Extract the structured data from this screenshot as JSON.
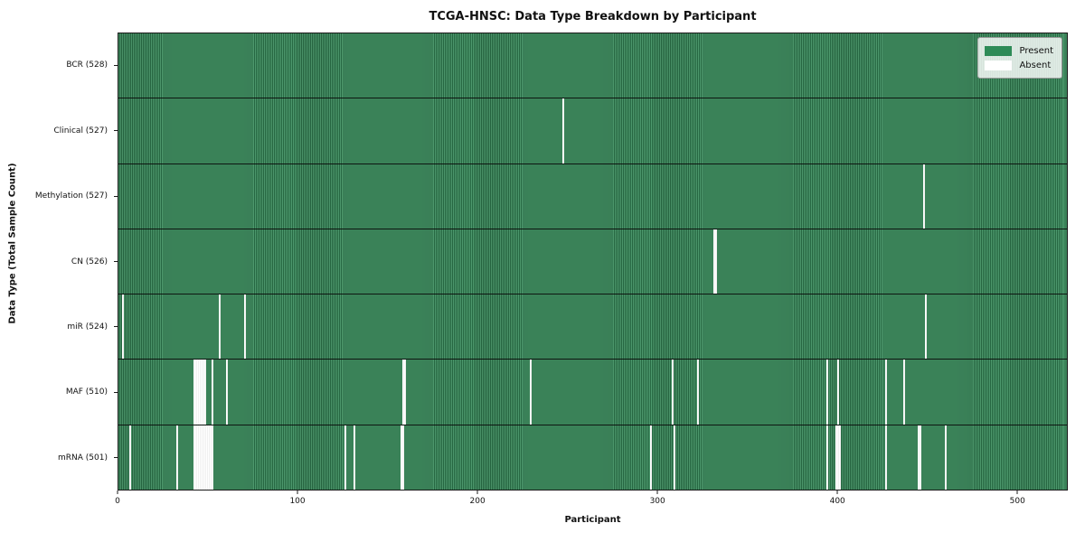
{
  "title": "TCGA-HNSC: Data Type Breakdown by Participant",
  "colors": {
    "present": "#2e8b57",
    "present_stripe_light": "#4e9a6e",
    "present_stripe_dark": "#276943",
    "present_mid": "#2e7a50",
    "absent": "#ffffff",
    "axis": "#1b1b1b"
  },
  "legend": {
    "present_label": "Present",
    "absent_label": "Absent"
  },
  "chart_data": {
    "type": "heatmap",
    "title": "TCGA-HNSC: Data Type Breakdown by Participant",
    "xlabel": "Participant",
    "ylabel": "Data Type (Total Sample Count)",
    "legend_entries": [
      "Present",
      "Absent"
    ],
    "legend_position": "upper right",
    "grid": false,
    "n_participants": 528,
    "x_range": [
      0,
      528
    ],
    "x_ticks": [
      0,
      100,
      200,
      300,
      400,
      500
    ],
    "rows": [
      {
        "name": "BCR",
        "label": "BCR (528)",
        "present_count": 528,
        "absent_participants": []
      },
      {
        "name": "Clinical",
        "label": "Clinical (527)",
        "present_count": 527,
        "absent_participants": [
          247
        ]
      },
      {
        "name": "Methylation",
        "label": "Methylation (527)",
        "present_count": 527,
        "absent_participants": [
          448
        ]
      },
      {
        "name": "CN",
        "label": "CN (526)",
        "present_count": 526,
        "absent_participants": [
          331,
          332
        ]
      },
      {
        "name": "miR",
        "label": "miR (524)",
        "present_count": 524,
        "absent_participants": [
          2,
          56,
          70,
          449
        ]
      },
      {
        "name": "MAF",
        "label": "MAF (510)",
        "present_count": 510,
        "absent_participants": [
          42,
          43,
          44,
          45,
          46,
          47,
          48,
          52,
          60,
          158,
          159,
          229,
          308,
          322,
          394,
          400,
          427,
          437
        ]
      },
      {
        "name": "mRNA",
        "label": "mRNA (501)",
        "present_count": 501,
        "absent_participants": [
          6,
          32,
          42,
          43,
          44,
          45,
          46,
          47,
          48,
          49,
          50,
          51,
          52,
          126,
          131,
          157,
          158,
          296,
          309,
          394,
          399,
          400,
          401,
          427,
          445,
          446,
          460
        ]
      }
    ]
  }
}
